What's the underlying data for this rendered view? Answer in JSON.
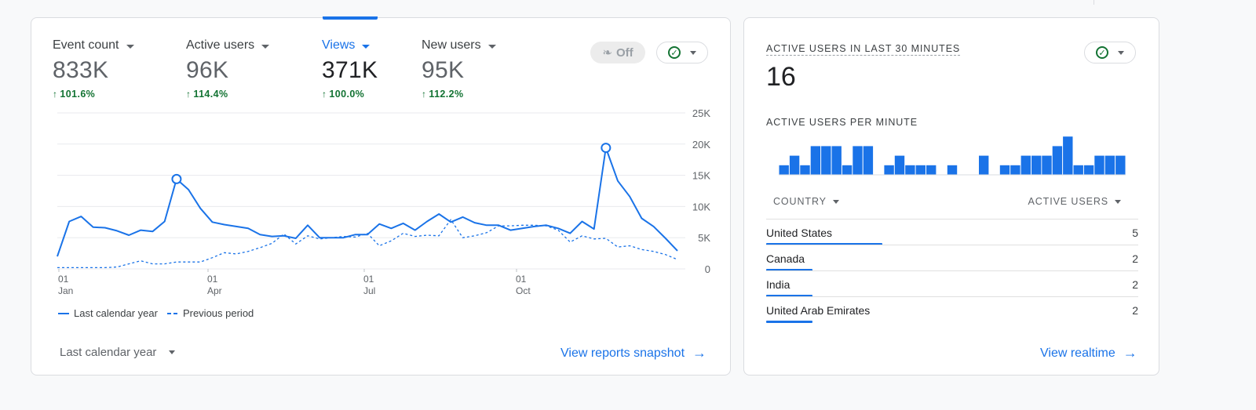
{
  "overview": {
    "metrics": [
      {
        "label": "Event count",
        "value": "833K",
        "delta": "101.6%"
      },
      {
        "label": "Active users",
        "value": "96K",
        "delta": "114.4%"
      },
      {
        "label": "Views",
        "value": "371K",
        "delta": "100.0%",
        "selected": true
      },
      {
        "label": "New users",
        "value": "95K",
        "delta": "112.2%"
      }
    ],
    "insights_toggle": "Off",
    "date_range": "Last calendar year",
    "link": "View reports snapshot"
  },
  "chart_data": {
    "type": "line",
    "y_ticks": [
      "25K",
      "20K",
      "15K",
      "10K",
      "5K",
      "0"
    ],
    "ylim": [
      0,
      25000
    ],
    "x_ticks": [
      {
        "day": "01",
        "month": "Jan"
      },
      {
        "day": "01",
        "month": "Apr"
      },
      {
        "day": "01",
        "month": "Jul"
      },
      {
        "day": "01",
        "month": "Oct"
      }
    ],
    "series": [
      {
        "name": "Last calendar year",
        "style": "solid",
        "color": "#1a73e8",
        "values": [
          2000,
          7600,
          8400,
          6700,
          6600,
          6100,
          5400,
          6200,
          6000,
          7600,
          14400,
          12700,
          9700,
          7500,
          7100,
          6800,
          6500,
          5500,
          5200,
          5300,
          4900,
          7000,
          5000,
          5000,
          5000,
          5500,
          5500,
          7200,
          6500,
          7300,
          6200,
          7600,
          8800,
          7500,
          8300,
          7400,
          7000,
          7000,
          6200,
          6500,
          6800,
          7000,
          6500,
          5700,
          7600,
          6400,
          19400,
          14100,
          11600,
          8100,
          6800,
          4900,
          2900
        ],
        "markers": [
          10,
          46
        ]
      },
      {
        "name": "Previous period",
        "style": "dashed",
        "color": "#1a73e8",
        "values": [
          200,
          200,
          200,
          200,
          200,
          300,
          800,
          1300,
          800,
          800,
          1100,
          1100,
          1100,
          1800,
          2600,
          2400,
          2800,
          3400,
          4100,
          5600,
          4000,
          5300,
          4800,
          5000,
          5200,
          5100,
          5700,
          3700,
          4500,
          5700,
          5200,
          5400,
          5300,
          7900,
          5000,
          5300,
          5800,
          6900,
          6900,
          7000,
          7000,
          6900,
          6200,
          4300,
          5300,
          4800,
          4900,
          3500,
          3700,
          3100,
          2800,
          2300,
          1500
        ]
      }
    ],
    "legend": [
      "Last calendar year",
      "Previous period"
    ]
  },
  "realtime": {
    "title": "ACTIVE USERS IN LAST 30 MINUTES",
    "value": "16",
    "subtitle": "ACTIVE USERS PER MINUTE",
    "per_minute": [
      1,
      2,
      1,
      3,
      3,
      3,
      1,
      3,
      3,
      0,
      1,
      2,
      1,
      1,
      1,
      0,
      1,
      0,
      0,
      2,
      0,
      1,
      1,
      2,
      2,
      2,
      3,
      4,
      1,
      1,
      2,
      2,
      2
    ],
    "columns": {
      "country": "COUNTRY",
      "users": "ACTIVE USERS"
    },
    "rows": [
      {
        "country": "United States",
        "users": "5",
        "share": 1.0
      },
      {
        "country": "Canada",
        "users": "2",
        "share": 0.4
      },
      {
        "country": "India",
        "users": "2",
        "share": 0.4
      },
      {
        "country": "United Arab Emirates",
        "users": "2",
        "share": 0.4
      }
    ],
    "link": "View realtime"
  }
}
